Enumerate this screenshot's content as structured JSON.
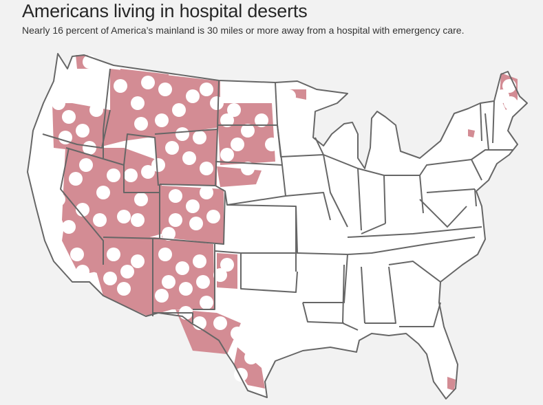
{
  "header": {
    "title": "Americans living in hospital deserts",
    "subtitle": "Nearly 16 percent of America’s mainland is 30 miles or more away from a hospital with emergency care."
  },
  "map": {
    "desert_color": "#d38c94",
    "land_color": "#ffffff",
    "border_color": "#666666",
    "background_color": "#f2f2f2"
  }
}
